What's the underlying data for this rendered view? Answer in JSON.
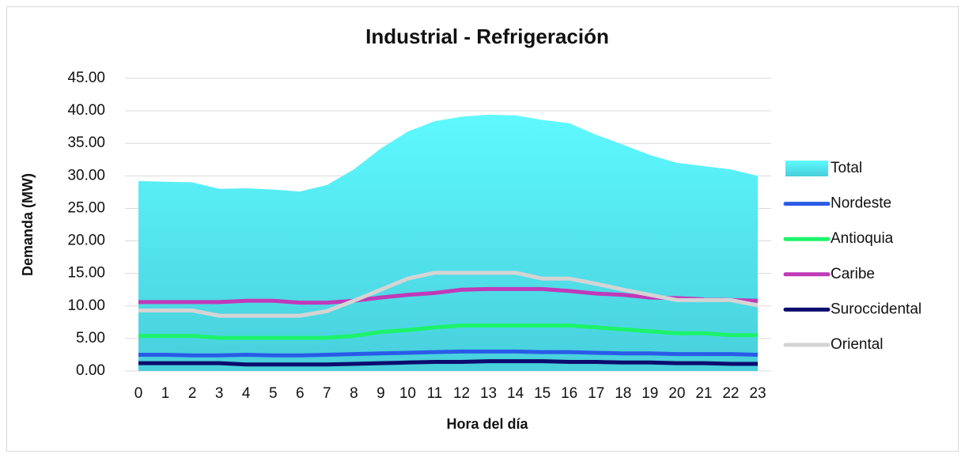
{
  "chart_data": {
    "type": "line",
    "title": "Industrial - Refrigeración",
    "x_label": "Hora del día",
    "y_label": "Demanda (MW)",
    "categories": [
      "0",
      "1",
      "2",
      "3",
      "4",
      "5",
      "6",
      "7",
      "8",
      "9",
      "10",
      "11",
      "12",
      "13",
      "14",
      "15",
      "16",
      "17",
      "18",
      "19",
      "20",
      "21",
      "22",
      "23"
    ],
    "ylim": [
      0,
      45
    ],
    "yticks": [
      {
        "value": 0,
        "label": "0.00"
      },
      {
        "value": 5,
        "label": "5.00"
      },
      {
        "value": 10,
        "label": "10.00"
      },
      {
        "value": 15,
        "label": "15.00"
      },
      {
        "value": 20,
        "label": "20.00"
      },
      {
        "value": 25,
        "label": "25.00"
      },
      {
        "value": 30,
        "label": "30.00"
      },
      {
        "value": 35,
        "label": "35.00"
      },
      {
        "value": 40,
        "label": "40.00"
      },
      {
        "value": 45,
        "label": "45.00"
      }
    ],
    "grid": true,
    "legend": "right",
    "series": [
      {
        "name": "Total",
        "type": "area",
        "color": "#56e8f5",
        "values": [
          29.2,
          29.1,
          29.0,
          28.0,
          28.1,
          27.9,
          27.6,
          28.6,
          31.0,
          34.2,
          36.8,
          38.4,
          39.1,
          39.4,
          39.3,
          38.6,
          38.1,
          36.3,
          34.8,
          33.2,
          32.0,
          31.5,
          31.0,
          30.0
        ]
      },
      {
        "name": "Nordeste",
        "type": "line",
        "color": "#2a5be8",
        "values": [
          2.5,
          2.5,
          2.4,
          2.4,
          2.5,
          2.4,
          2.4,
          2.5,
          2.6,
          2.7,
          2.8,
          2.9,
          3.0,
          3.0,
          3.0,
          2.9,
          2.9,
          2.8,
          2.7,
          2.7,
          2.6,
          2.6,
          2.6,
          2.5
        ]
      },
      {
        "name": "Antioquia",
        "type": "line",
        "color": "#1cf36a",
        "values": [
          5.4,
          5.4,
          5.4,
          5.1,
          5.1,
          5.1,
          5.1,
          5.1,
          5.4,
          6.0,
          6.3,
          6.7,
          7.0,
          7.0,
          7.0,
          7.0,
          7.0,
          6.7,
          6.4,
          6.1,
          5.8,
          5.8,
          5.5,
          5.5
        ]
      },
      {
        "name": "Caribe",
        "type": "line",
        "color": "#c03ab8",
        "values": [
          10.6,
          10.6,
          10.6,
          10.6,
          10.8,
          10.8,
          10.5,
          10.5,
          10.8,
          11.3,
          11.7,
          12.0,
          12.5,
          12.6,
          12.6,
          12.6,
          12.3,
          11.9,
          11.7,
          11.3,
          11.2,
          11.0,
          10.9,
          10.8
        ]
      },
      {
        "name": "Suroccidental",
        "type": "line",
        "color": "#0c0c6e",
        "values": [
          1.2,
          1.2,
          1.2,
          1.2,
          1.0,
          1.0,
          1.0,
          1.0,
          1.1,
          1.2,
          1.3,
          1.4,
          1.4,
          1.5,
          1.5,
          1.5,
          1.4,
          1.4,
          1.3,
          1.3,
          1.2,
          1.2,
          1.1,
          1.1
        ]
      },
      {
        "name": "Oriental",
        "type": "line",
        "color": "#d4d4d4",
        "values": [
          9.3,
          9.3,
          9.3,
          8.5,
          8.5,
          8.5,
          8.5,
          9.2,
          10.8,
          12.5,
          14.2,
          15.1,
          15.1,
          15.1,
          15.1,
          14.2,
          14.2,
          13.4,
          12.5,
          11.7,
          10.9,
          10.9,
          10.9,
          10.1
        ]
      }
    ]
  }
}
